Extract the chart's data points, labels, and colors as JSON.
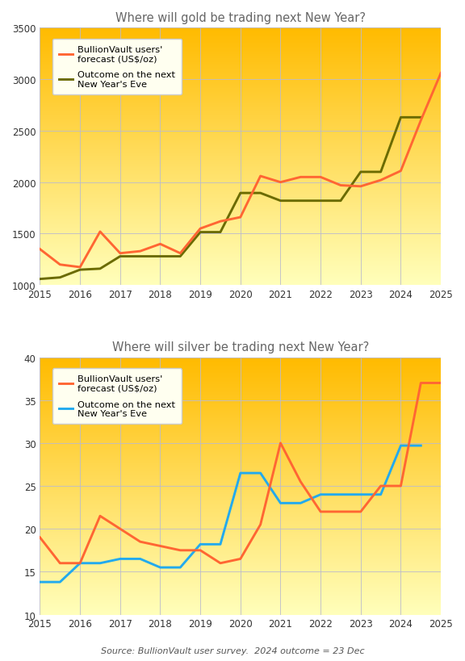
{
  "gold_title": "Where will gold be trading next New Year?",
  "silver_title": "Where will silver be trading next New Year?",
  "source_text": "Source: BullionVault user survey.  2024 outcome = 23 Dec",
  "gold_forecast_x": [
    2015,
    2015.5,
    2016,
    2016.5,
    2017,
    2017.5,
    2018,
    2018.5,
    2019,
    2019.5,
    2020,
    2020.5,
    2021,
    2021.5,
    2022,
    2022.5,
    2023,
    2023.5,
    2024,
    2024.5,
    2025
  ],
  "gold_forecast_y": [
    1350,
    1200,
    1175,
    1520,
    1310,
    1330,
    1400,
    1310,
    1550,
    1620,
    1660,
    2060,
    2000,
    2050,
    2050,
    1970,
    1960,
    2020,
    2110,
    2600,
    3060
  ],
  "gold_outcome_x": [
    2015,
    2015.5,
    2016,
    2016.5,
    2017,
    2017.5,
    2018,
    2018.5,
    2019,
    2019.5,
    2020,
    2020.5,
    2021,
    2021.5,
    2022,
    2022.5,
    2023,
    2023.5,
    2024,
    2024.5
  ],
  "gold_outcome_y": [
    1060,
    1075,
    1150,
    1160,
    1280,
    1280,
    1280,
    1280,
    1515,
    1515,
    1895,
    1895,
    1820,
    1820,
    1820,
    1820,
    2100,
    2100,
    2630,
    2630
  ],
  "gold_ylim": [
    1000,
    3500
  ],
  "gold_yticks": [
    1000,
    1500,
    2000,
    2500,
    3000,
    3500
  ],
  "silver_forecast_x": [
    2015,
    2015.5,
    2016,
    2016.5,
    2017,
    2017.5,
    2018,
    2018.5,
    2019,
    2019.5,
    2020,
    2020.5,
    2021,
    2021.5,
    2022,
    2022.5,
    2023,
    2023.5,
    2024,
    2024.5,
    2025
  ],
  "silver_forecast_y": [
    19,
    16,
    16,
    21.5,
    20,
    18.5,
    18,
    17.5,
    17.5,
    16,
    16.5,
    20.5,
    30,
    25.5,
    22,
    22,
    22,
    25,
    25,
    37,
    37
  ],
  "silver_outcome_x": [
    2015,
    2015.5,
    2016,
    2016.5,
    2017,
    2017.5,
    2018,
    2018.5,
    2019,
    2019.5,
    2020,
    2020.5,
    2021,
    2021.5,
    2022,
    2022.5,
    2023,
    2023.5,
    2024,
    2024.5
  ],
  "silver_outcome_y": [
    13.8,
    13.8,
    16,
    16,
    16.5,
    16.5,
    15.5,
    15.5,
    18.2,
    18.2,
    26.5,
    26.5,
    23,
    23,
    24,
    24,
    24,
    24,
    29.7,
    29.7
  ],
  "silver_ylim": [
    10,
    40
  ],
  "silver_yticks": [
    10,
    15,
    20,
    25,
    30,
    35,
    40
  ],
  "xlim": [
    2015,
    2025
  ],
  "xticks": [
    2015,
    2016,
    2017,
    2018,
    2019,
    2020,
    2021,
    2022,
    2023,
    2024,
    2025
  ],
  "forecast_color": "#FF6633",
  "gold_outcome_color": "#6B6B00",
  "silver_outcome_color": "#22AAEE",
  "grid_color": "#BBBBCC",
  "bg_top_color": "#FFBB00",
  "bg_bottom_color": "#FFFFBB",
  "title_color": "#666666",
  "legend_label_forecast": "BullionVault users'\nforecast (US$/oz)",
  "legend_label_outcome_gold": "Outcome on the next\nNew Year's Eve",
  "legend_label_outcome_silver": "Outcome on the next\nNew Year's Eve",
  "legend_facecolor": "#FFFFF0",
  "source_color": "#555555"
}
